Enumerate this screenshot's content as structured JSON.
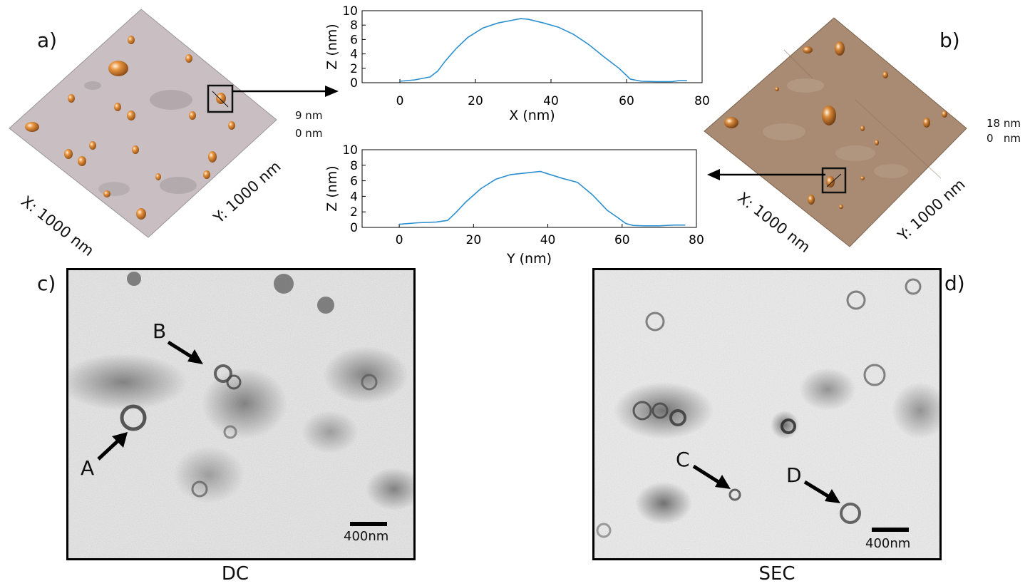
{
  "panels": {
    "a": {
      "letter": "a)",
      "x_axis": "X: 1000 nm",
      "y_axis": "Y: 1000 nm",
      "z_max": "9 nm",
      "z_min": "0 nm"
    },
    "b": {
      "letter": "b)",
      "x_axis": "X: 1000 nm",
      "y_axis": "Y: 1000 nm",
      "z_max": "18 nm",
      "z_min": "0   nm"
    },
    "c": {
      "letter": "c)",
      "caption": "DC",
      "scale_label": "400nm",
      "arrow_labels": [
        "A",
        "B"
      ]
    },
    "d": {
      "letter": "d)",
      "caption": "SEC",
      "scale_label": "400nm",
      "arrow_labels": [
        "C",
        "D"
      ]
    }
  },
  "colors": {
    "profile_line": "#2b8fd0",
    "afm_a": "#c9bfc2",
    "afm_b": "#a98b73",
    "particle": "#d07a2c"
  },
  "chart_data": [
    {
      "type": "line",
      "title": "",
      "xlabel": "X (nm)",
      "ylabel": "Z (nm)",
      "xlim": [
        -10,
        80
      ],
      "ylim": [
        0,
        10
      ],
      "xticks": [
        0,
        20,
        40,
        60,
        80
      ],
      "yticks": [
        0,
        2,
        4,
        6,
        8,
        10
      ],
      "x": [
        0,
        4,
        8,
        10,
        12,
        15,
        18,
        22,
        26,
        30,
        32,
        34,
        38,
        42,
        46,
        50,
        54,
        58,
        61,
        64,
        68,
        72,
        74,
        76
      ],
      "y": [
        0.2,
        0.4,
        0.8,
        1.6,
        3.0,
        4.8,
        6.3,
        7.6,
        8.3,
        8.7,
        8.9,
        8.8,
        8.3,
        7.7,
        6.7,
        5.3,
        3.6,
        2.0,
        0.5,
        0.2,
        0.15,
        0.15,
        0.3,
        0.3
      ]
    },
    {
      "type": "line",
      "title": "",
      "xlabel": "Y (nm)",
      "ylabel": "Z (nm)",
      "xlim": [
        -10,
        80
      ],
      "ylim": [
        0,
        10
      ],
      "xticks": [
        0,
        20,
        40,
        60,
        80
      ],
      "yticks": [
        0,
        2,
        4,
        6,
        8,
        10
      ],
      "x": [
        0,
        5,
        10,
        13,
        15,
        18,
        22,
        26,
        30,
        34,
        38,
        40,
        44,
        48,
        52,
        56,
        59,
        61,
        63,
        66,
        70,
        74,
        77
      ],
      "y": [
        0.4,
        0.6,
        0.7,
        0.9,
        1.8,
        3.3,
        5.0,
        6.2,
        6.8,
        7.0,
        7.2,
        6.9,
        6.3,
        5.8,
        4.2,
        2.2,
        1.2,
        0.5,
        0.25,
        0.2,
        0.2,
        0.3,
        0.3
      ]
    }
  ]
}
